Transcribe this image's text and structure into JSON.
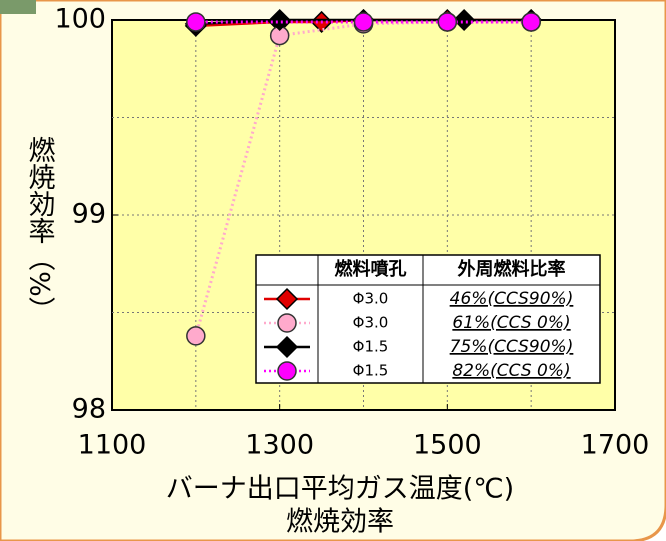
{
  "chart_data": {
    "type": "line",
    "title": "燃焼効率",
    "x_label": "バーナ出口平均ガス温度(℃)",
    "y_label": "燃焼効率（%）",
    "xlim": [
      1100,
      1700
    ],
    "xticks": [
      1100,
      1300,
      1500,
      1700
    ],
    "xgrid": [
      1200,
      1300,
      1400,
      1500,
      1600
    ],
    "ylim": [
      98,
      100
    ],
    "yticks": [
      98,
      99,
      100
    ],
    "ygrid": [
      98.5,
      99,
      99.5
    ],
    "legend_headers": [
      "燃料噴孔",
      "外周燃料比率"
    ],
    "series": [
      {
        "nozzle": "Φ3.0",
        "ratio": "46%(CCS90%)",
        "color": "#e00000",
        "marker": "diamond",
        "dash": false,
        "x": [
          1200,
          1300,
          1350,
          1400,
          1500,
          1600
        ],
        "values": [
          99.97,
          99.99,
          99.99,
          100,
          100,
          100
        ]
      },
      {
        "nozzle": "Φ3.0",
        "ratio": "61%(CCS 0%)",
        "color": "#ffaacc",
        "marker": "circle",
        "dash": true,
        "x": [
          1200,
          1300,
          1400,
          1500,
          1600
        ],
        "values": [
          98.38,
          99.92,
          99.98,
          99.99,
          99.99
        ]
      },
      {
        "nozzle": "Φ1.5",
        "ratio": "75%(CCS90%)",
        "color": "#000000",
        "marker": "diamond",
        "dash": false,
        "x": [
          1200,
          1300,
          1400,
          1520,
          1600
        ],
        "values": [
          99.98,
          100,
          100,
          100,
          100
        ]
      },
      {
        "nozzle": "Φ1.5",
        "ratio": "82%(CCS 0%)",
        "color": "#ff00ff",
        "marker": "circle",
        "dash": true,
        "x": [
          1200,
          1400,
          1500,
          1600
        ],
        "values": [
          99.99,
          99.99,
          99.99,
          99.99
        ]
      }
    ]
  }
}
